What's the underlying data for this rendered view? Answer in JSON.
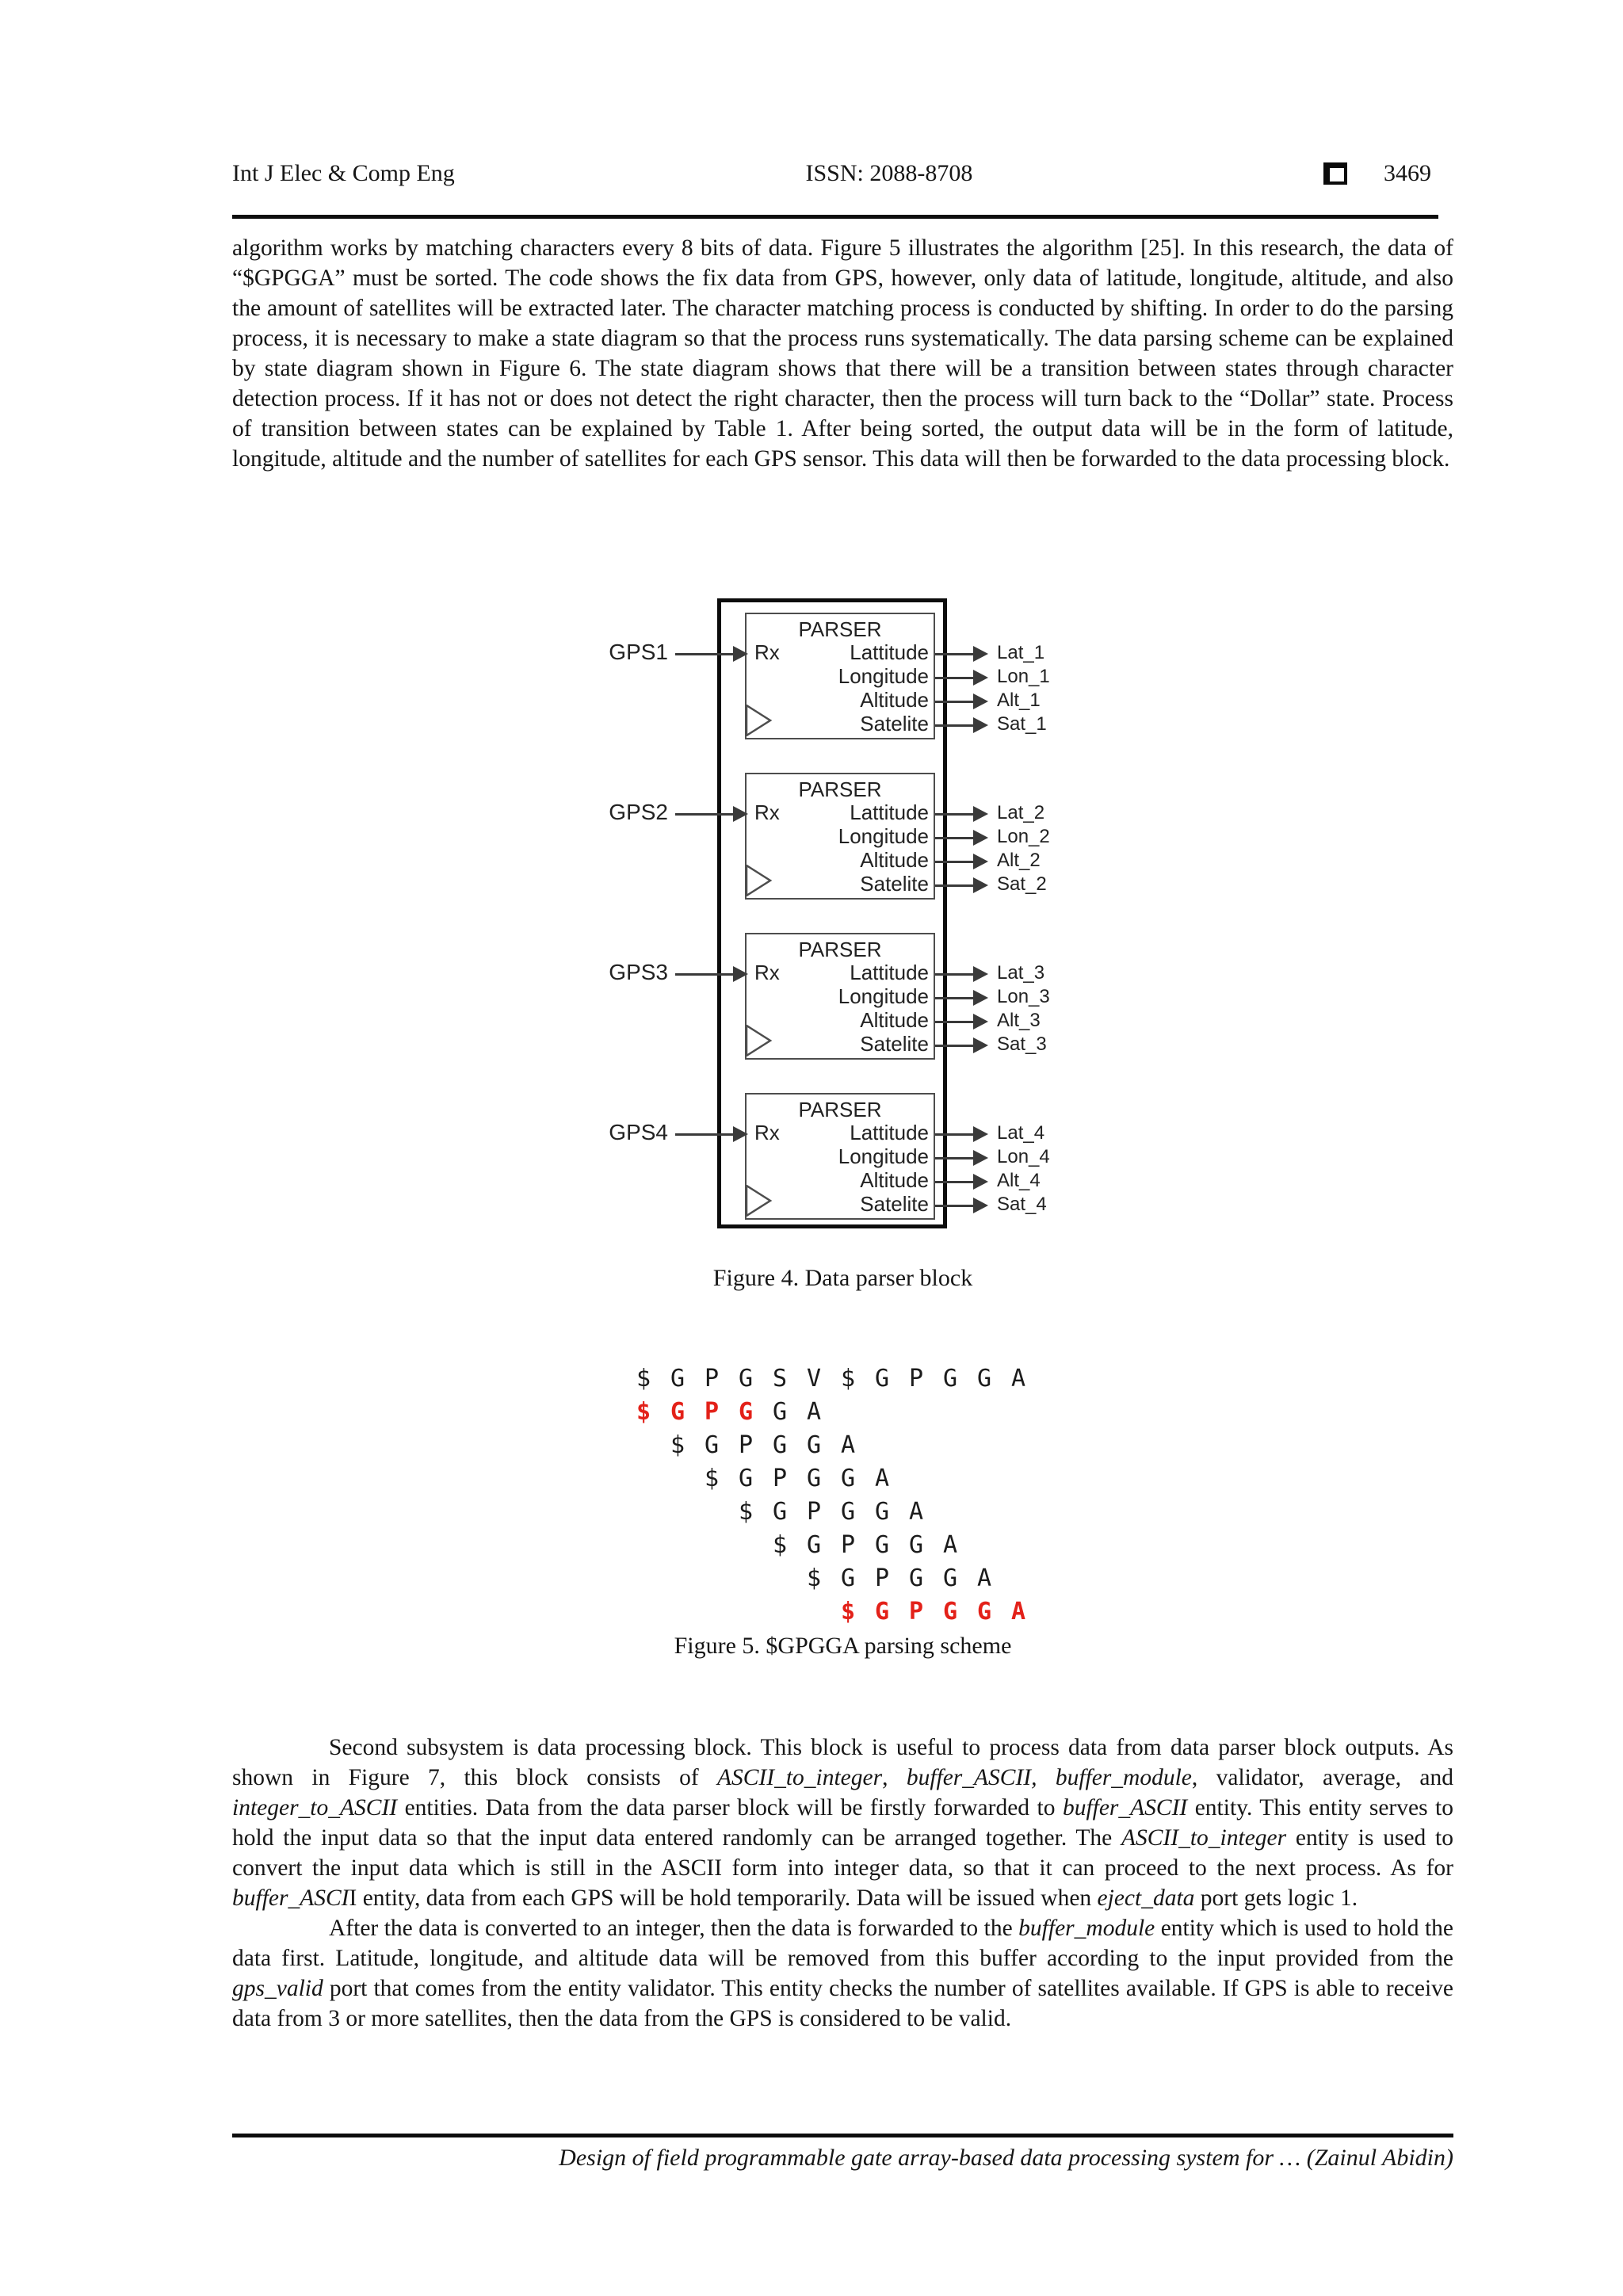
{
  "header": {
    "journal": "Int J Elec & Comp Eng",
    "issn": "ISSN: 2088-8708",
    "page_number": "3469",
    "box_icon": "shadowed-square-icon"
  },
  "colors": {
    "text": "#161616",
    "highlight_red": "#e32119",
    "diagram_line": "#3a3a3a",
    "outer_box_border": "#0c0c0c",
    "inner_box_border": "#4d4d4d"
  },
  "paragraphs": [
    {
      "indent": false,
      "segments": [
        {
          "t": "algorithm works by matching characters every 8 bits of data. Figure 5 illustrates the algorithm [25]. In this research, the data of “$GPGGA” must be sorted. The code shows the fix data from GPS, however, only data of latitude, longitude, altitude, and also the amount of satellites will be extracted later. The character matching process is conducted by shifting. In order to do the parsing process, it is necessary to make a state diagram so that the process runs systematically. The data parsing scheme can be explained by state diagram shown in Figure 6. The state diagram shows that there will be a transition between states through character detection process. If it has not or does not detect the right character, then the process will turn back to the “Dollar” state. Process of transition between states can be explained by Table 1. After being sorted, the output data will be in the form of latitude, longitude, altitude and the number of satellites for each GPS sensor. This data will then be forwarded to the data processing block.",
          "i": false
        }
      ]
    },
    {
      "indent": true,
      "segments": [
        {
          "t": "Second subsystem is data processing block. This block is useful to process data from data parser block outputs. As shown in Figure 7, this block consists of ",
          "i": false
        },
        {
          "t": "ASCII_to_integer",
          "i": true
        },
        {
          "t": ", ",
          "i": false
        },
        {
          "t": "buffer_ASCII, buffer_module",
          "i": true
        },
        {
          "t": ", validator, average, and ",
          "i": false
        },
        {
          "t": "integer_to_ASCII",
          "i": true
        },
        {
          "t": " entities. Data from the data parser block will be firstly forwarded to ",
          "i": false
        },
        {
          "t": "buffer_ASCII",
          "i": true
        },
        {
          "t": " entity. This entity serves to hold the input data so that the input data entered randomly can be arranged together. The ",
          "i": false
        },
        {
          "t": "ASCII_to_integer",
          "i": true
        },
        {
          "t": " entity is used to convert the input data which is still in the ASCII form into integer data, so that it can proceed to the next process. As for ",
          "i": false
        },
        {
          "t": "buffer_ASCI",
          "i": true
        },
        {
          "t": "I entity, data from each GPS will be hold temporarily. Data will be issued when ",
          "i": false
        },
        {
          "t": "eject_data",
          "i": true
        },
        {
          "t": " port gets logic 1.",
          "i": false
        }
      ]
    },
    {
      "indent": true,
      "segments": [
        {
          "t": "After the data is converted to an integer, then the data is forwarded to the ",
          "i": false
        },
        {
          "t": "buffer_module",
          "i": true
        },
        {
          "t": " entity which is used to hold the data first. Latitude, longitude, and altitude data will be removed from this buffer according to the input provided from the ",
          "i": false
        },
        {
          "t": "gps_valid",
          "i": true
        },
        {
          "t": " port that comes from the entity validator. This entity checks the number of satellites available. If GPS is able to receive data from 3 or more satellites, then the data from the GPS is considered to be valid.",
          "i": false
        }
      ]
    }
  ],
  "figure4": {
    "caption": "Figure 4. Data parser block",
    "parser_title": "PARSER",
    "rx_label": "Rx",
    "clock_icon": "clock-input-triangle-icon",
    "port_labels": [
      "Lattitude",
      "Longitude",
      "Altitude",
      "Satelite"
    ],
    "parsers": [
      {
        "input": "GPS1",
        "outputs": [
          "Lat_1",
          "Lon_1",
          "Alt_1",
          "Sat_1"
        ]
      },
      {
        "input": "GPS2",
        "outputs": [
          "Lat_2",
          "Lon_2",
          "Alt_2",
          "Sat_2"
        ]
      },
      {
        "input": "GPS3",
        "outputs": [
          "Lat_3",
          "Lon_3",
          "Alt_3",
          "Sat_3"
        ]
      },
      {
        "input": "GPS4",
        "outputs": [
          "Lat_4",
          "Lon_4",
          "Alt_4",
          "Sat_4"
        ]
      }
    ]
  },
  "figure5": {
    "caption": "Figure 5. $GPGGA parsing scheme",
    "rows": [
      {
        "offset": 0,
        "chars": [
          "$",
          "G",
          "P",
          "G",
          "S",
          "V",
          "$",
          "G",
          "P",
          "G",
          "G",
          "A"
        ],
        "red": [
          false,
          false,
          false,
          false,
          false,
          false,
          false,
          false,
          false,
          false,
          false,
          false
        ]
      },
      {
        "offset": 0,
        "chars": [
          "$",
          "G",
          "P",
          "G",
          "G",
          "A"
        ],
        "red": [
          true,
          true,
          true,
          true,
          false,
          false
        ]
      },
      {
        "offset": 1,
        "chars": [
          "$",
          "G",
          "P",
          "G",
          "G",
          "A"
        ],
        "red": [
          false,
          false,
          false,
          false,
          false,
          false
        ]
      },
      {
        "offset": 2,
        "chars": [
          "$",
          "G",
          "P",
          "G",
          "G",
          "A"
        ],
        "red": [
          false,
          false,
          false,
          false,
          false,
          false
        ]
      },
      {
        "offset": 3,
        "chars": [
          "$",
          "G",
          "P",
          "G",
          "G",
          "A"
        ],
        "red": [
          false,
          false,
          false,
          false,
          false,
          false
        ]
      },
      {
        "offset": 4,
        "chars": [
          "$",
          "G",
          "P",
          "G",
          "G",
          "A"
        ],
        "red": [
          false,
          false,
          false,
          false,
          false,
          false
        ]
      },
      {
        "offset": 5,
        "chars": [
          "$",
          "G",
          "P",
          "G",
          "G",
          "A"
        ],
        "red": [
          false,
          false,
          false,
          false,
          false,
          false
        ]
      },
      {
        "offset": 6,
        "chars": [
          "$",
          "G",
          "P",
          "G",
          "G",
          "A"
        ],
        "red": [
          true,
          true,
          true,
          true,
          true,
          true
        ]
      }
    ]
  },
  "footer": {
    "running_title": "Design of field programmable gate array-based data processing system for … (Zainul Abidin)"
  }
}
